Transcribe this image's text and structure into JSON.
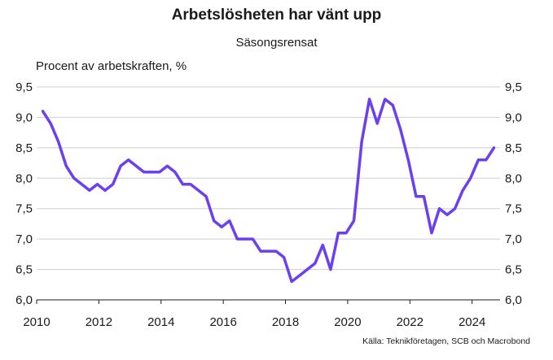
{
  "chart_data": {
    "type": "line",
    "title": "Arbetslösheten har vänt upp",
    "subtitle": "Säsongsrensat",
    "ylabel": "Procent av arbetskraften, %",
    "xlabel": "",
    "source": "Källa: Teknikföretagen, SCB och Macrobond",
    "xlim": [
      2010,
      2024.9
    ],
    "ylim": [
      6.0,
      9.5
    ],
    "x_ticks": [
      "2010",
      "2012",
      "2014",
      "2016",
      "2018",
      "2020",
      "2022",
      "2024"
    ],
    "x_tick_values": [
      2010,
      2012,
      2014,
      2016,
      2018,
      2020,
      2022,
      2024
    ],
    "y_ticks": [
      "6,0",
      "6,5",
      "7,0",
      "7,5",
      "8,0",
      "8,5",
      "9,0",
      "9,5"
    ],
    "y_tick_values": [
      6.0,
      6.5,
      7.0,
      7.5,
      8.0,
      8.5,
      9.0,
      9.5
    ],
    "grid": "horizontal",
    "line_color": "#6c3ff0",
    "series": [
      {
        "x": [
          2010.2,
          2010.45,
          2010.7,
          2010.95,
          2011.2,
          2011.45,
          2011.7,
          2011.95,
          2012.2,
          2012.45,
          2012.7,
          2012.95,
          2013.2,
          2013.45,
          2013.7,
          2013.95,
          2014.2,
          2014.45,
          2014.7,
          2014.95,
          2015.2,
          2015.45,
          2015.7,
          2015.95,
          2016.2,
          2016.45,
          2016.7,
          2016.95,
          2017.2,
          2017.45,
          2017.7,
          2017.95,
          2018.2,
          2018.45,
          2018.7,
          2018.95,
          2019.2,
          2019.45,
          2019.7,
          2019.95,
          2020.2,
          2020.45,
          2020.7,
          2020.95,
          2021.2,
          2021.45,
          2021.7,
          2021.95,
          2022.2,
          2022.45,
          2022.7,
          2022.95,
          2023.2,
          2023.45,
          2023.7,
          2023.95,
          2024.2,
          2024.45,
          2024.7
        ],
        "values": [
          9.1,
          8.9,
          8.6,
          8.2,
          8.0,
          7.9,
          7.8,
          7.9,
          7.8,
          7.9,
          8.2,
          8.3,
          8.2,
          8.1,
          8.1,
          8.1,
          8.2,
          8.1,
          7.9,
          7.9,
          7.8,
          7.7,
          7.3,
          7.2,
          7.3,
          7.0,
          7.0,
          7.0,
          6.8,
          6.8,
          6.8,
          6.7,
          6.3,
          6.4,
          6.5,
          6.6,
          6.9,
          6.5,
          7.1,
          7.1,
          7.3,
          8.6,
          9.3,
          8.9,
          9.3,
          9.2,
          8.8,
          8.3,
          7.7,
          7.7,
          7.1,
          7.5,
          7.4,
          7.5,
          7.8,
          8.0,
          8.3,
          8.3,
          8.5
        ]
      }
    ]
  }
}
